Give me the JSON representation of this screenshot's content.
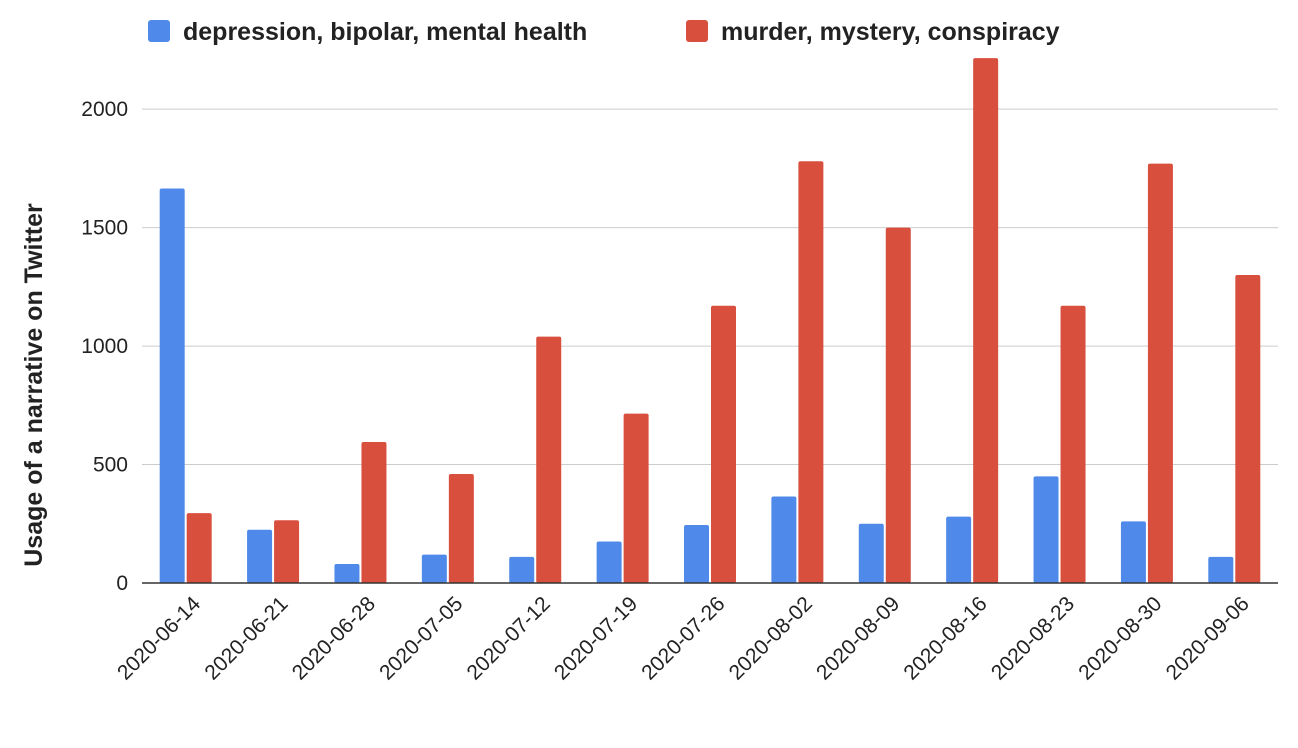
{
  "chart_data": {
    "type": "bar",
    "categories": [
      "2020-06-14",
      "2020-06-21",
      "2020-06-28",
      "2020-07-05",
      "2020-07-12",
      "2020-07-19",
      "2020-07-26",
      "2020-08-02",
      "2020-08-09",
      "2020-08-16",
      "2020-08-23",
      "2020-08-30",
      "2020-09-06"
    ],
    "series": [
      {
        "name": "depression, bipolar, mental health",
        "color": "#4f89ea",
        "values": [
          1665,
          225,
          80,
          120,
          110,
          175,
          245,
          365,
          250,
          280,
          450,
          260,
          110
        ]
      },
      {
        "name": "murder, mystery, conspiracy",
        "color": "#d94f3e",
        "values": [
          295,
          265,
          595,
          460,
          1040,
          715,
          1170,
          1780,
          1500,
          2215,
          1170,
          1770,
          1300
        ]
      }
    ],
    "xlabel": "",
    "ylabel": "Usage of a narrative on Twitter",
    "ylim": [
      0,
      2220
    ],
    "yticks": [
      0,
      500,
      1000,
      1500,
      2000
    ],
    "grid": true,
    "legend_position": "top"
  }
}
